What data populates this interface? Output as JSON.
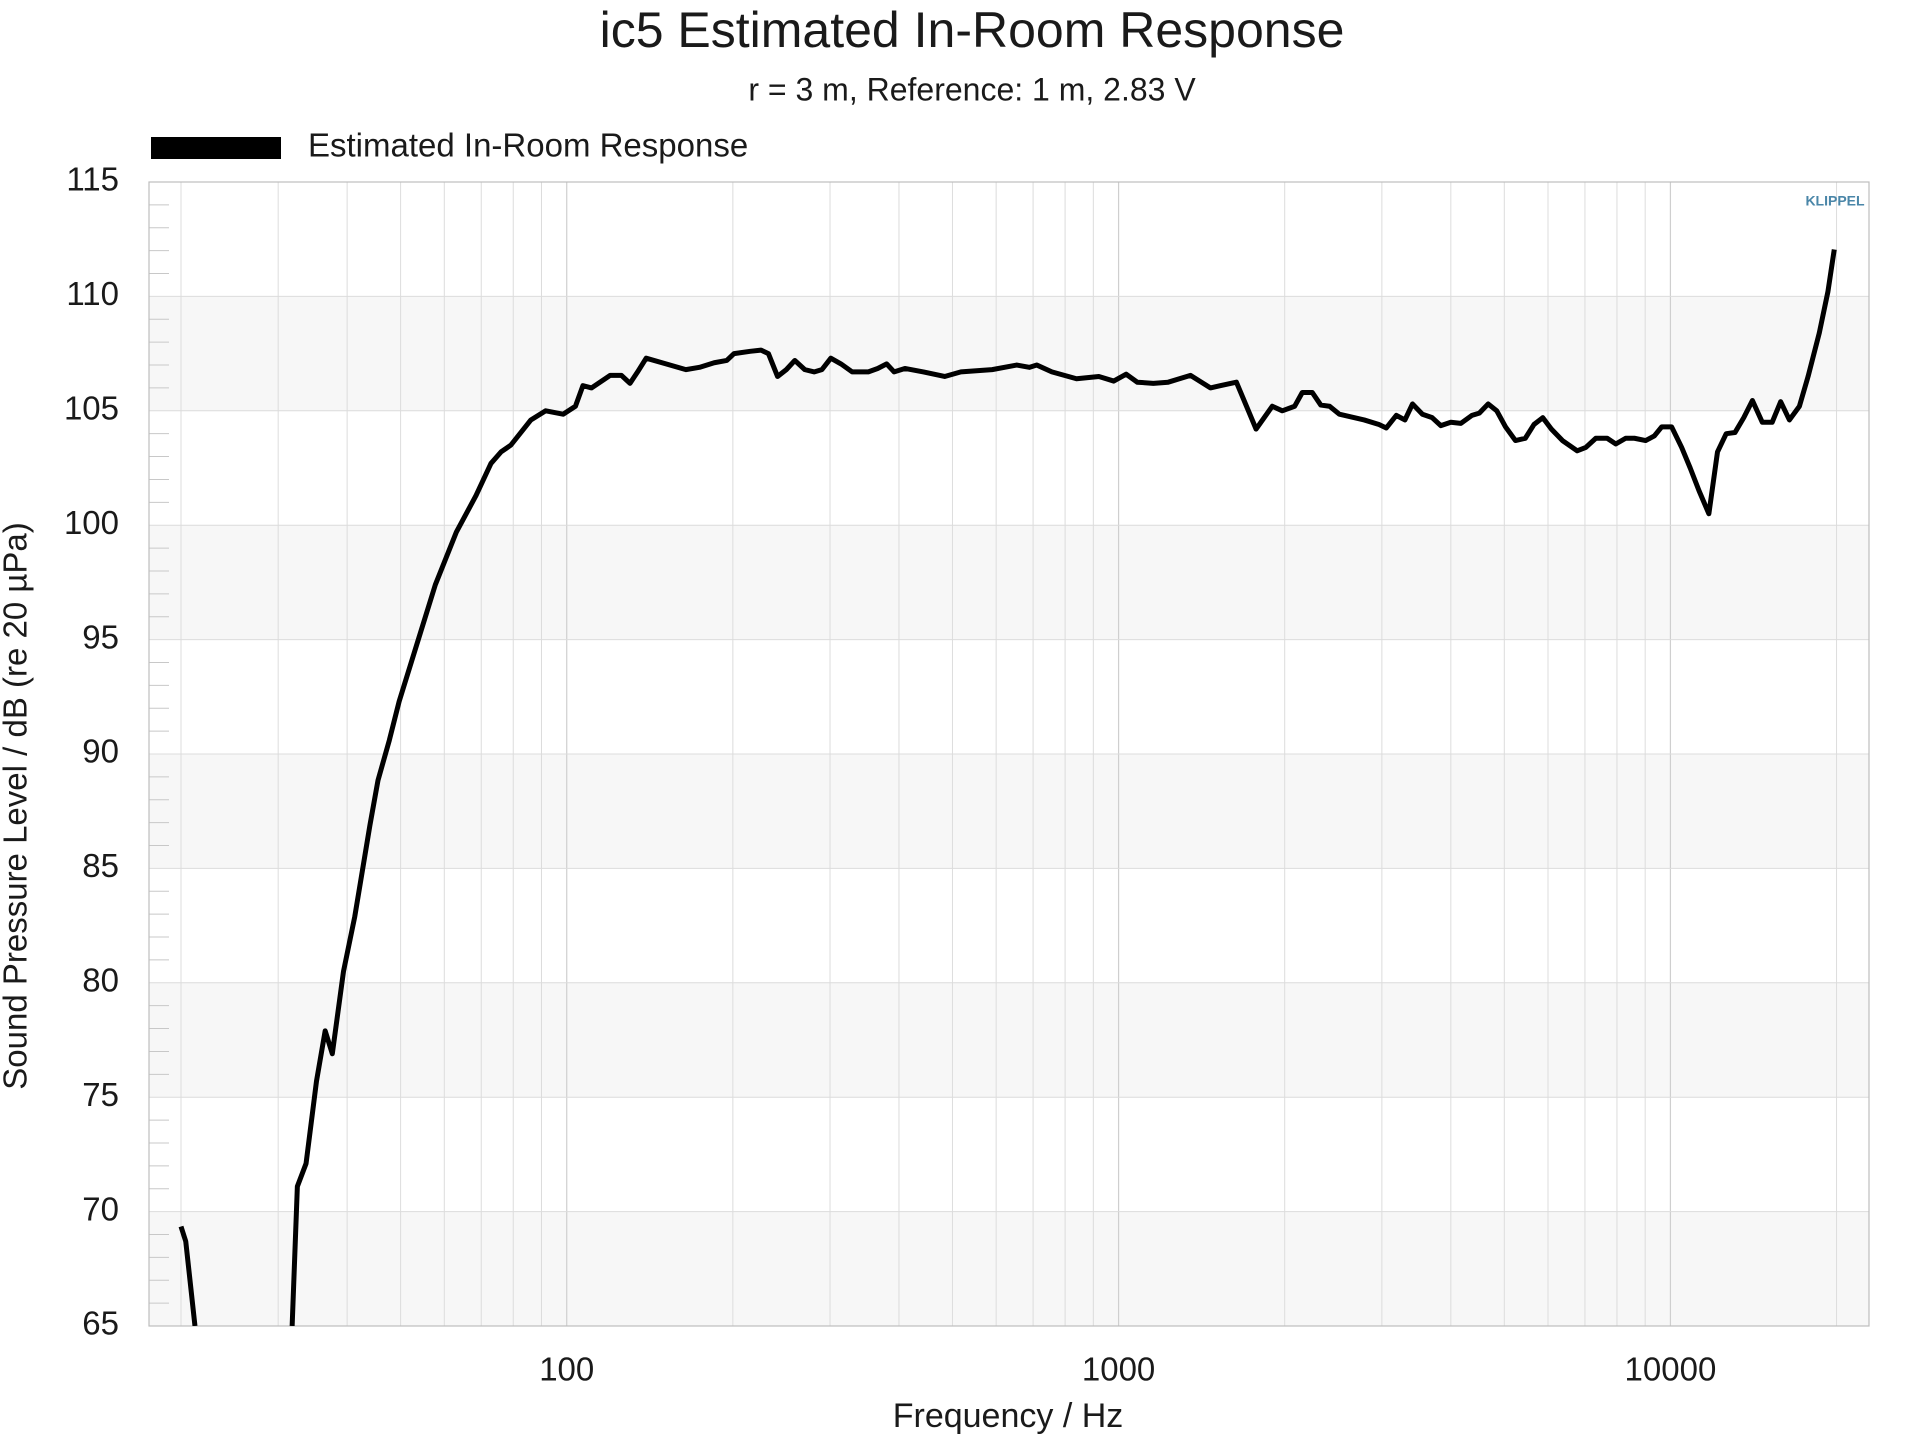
{
  "chart_data": {
    "type": "line",
    "title": "ic5 Estimated In-Room Response",
    "subtitle": "r = 3 m,  Reference: 1 m, 2.83 V",
    "xlabel": "Frequency / Hz",
    "ylabel": "Sound Pressure Level / dB (re 20 µPa)",
    "watermark": "KLIPPEL",
    "xscale": "log",
    "xlim": [
      17.5,
      22900
    ],
    "ylim": [
      65,
      115
    ],
    "xticks": [
      100,
      1000,
      10000
    ],
    "xminorticks": [
      20,
      30,
      40,
      50,
      60,
      70,
      80,
      90,
      200,
      300,
      400,
      500,
      600,
      700,
      800,
      900,
      2000,
      3000,
      4000,
      5000,
      6000,
      7000,
      8000,
      9000,
      20000
    ],
    "yticks": [
      65,
      70,
      75,
      80,
      85,
      90,
      95,
      100,
      105,
      110,
      115
    ],
    "yminorticks": [
      66,
      67,
      68,
      69,
      71,
      72,
      73,
      74,
      76,
      77,
      78,
      79,
      81,
      82,
      83,
      84,
      86,
      87,
      88,
      89,
      91,
      92,
      93,
      94,
      96,
      97,
      98,
      99,
      101,
      102,
      103,
      104,
      106,
      107,
      108,
      109,
      111,
      112,
      113,
      114
    ],
    "grid": true,
    "legend": "top-left",
    "x": [
      20,
      20.4,
      21.2,
      25,
      31.8,
      32.5,
      33.7,
      35.2,
      36.5,
      37.6,
      39.4,
      41.3,
      44,
      45.5,
      47.7,
      49.7,
      53.2,
      57.8,
      63.1,
      68.5,
      72.9,
      76,
      79.2,
      86.1,
      91.6,
      98.5,
      103.7,
      107,
      110.9,
      119.9,
      125.6,
      130.2,
      134.4,
      139.3,
      151.3,
      164.4,
      174,
      185,
      195,
      201,
      215,
      225,
      232,
      241,
      250,
      259,
      270,
      281,
      290,
      301,
      314,
      329,
      352,
      366,
      380,
      392,
      410,
      443,
      484,
      518,
      590,
      654,
      689,
      711,
      757,
      839,
      921,
      980,
      1032,
      1081,
      1156,
      1230,
      1350,
      1467,
      1528,
      1635,
      1775,
      1899,
      1980,
      2085,
      2152,
      2244,
      2325,
      2411,
      2512,
      2786,
      2964,
      3056,
      3186,
      3303,
      3409,
      3553,
      3701,
      3837,
      4000,
      4171,
      4368,
      4505,
      4674,
      4845,
      5025,
      5238,
      5458,
      5658,
      5870,
      6086,
      6372,
      6777,
      7025,
      7325,
      7680,
      7960,
      8297,
      8604,
      9018,
      9350,
      9644,
      10050,
      10480,
      10860,
      11270,
      11740,
      12170,
      12620,
      13090,
      13580,
      14080,
      14670,
      15290,
      15840,
      16430,
      17130,
      17760,
      18610,
      19290,
      19810
    ],
    "series": [
      {
        "name": "Estimated In-Room Response",
        "color": "#000000",
        "values": [
          69.35,
          68.7,
          65,
          null,
          65,
          71.1,
          72.1,
          75.7,
          77.9,
          76.9,
          80.5,
          82.9,
          86.9,
          88.85,
          90.6,
          92.3,
          94.6,
          97.4,
          99.7,
          101.3,
          102.7,
          103.2,
          103.5,
          104.6,
          105,
          104.85,
          105.2,
          106.1,
          106,
          106.55,
          106.55,
          106.2,
          106.7,
          107.3,
          107.05,
          106.8,
          106.9,
          107.1,
          107.2,
          107.5,
          107.6,
          107.65,
          107.5,
          106.5,
          106.8,
          107.2,
          106.8,
          106.7,
          106.8,
          107.3,
          107.05,
          106.7,
          106.7,
          106.85,
          107.05,
          106.7,
          106.85,
          106.7,
          106.5,
          106.7,
          106.8,
          107,
          106.9,
          107,
          106.7,
          106.4,
          106.5,
          106.3,
          106.6,
          106.25,
          106.2,
          106.25,
          106.55,
          106,
          106.1,
          106.25,
          104.2,
          105.2,
          105,
          105.2,
          105.8,
          105.8,
          105.25,
          105.2,
          104.85,
          104.6,
          104.4,
          104.25,
          104.8,
          104.6,
          105.3,
          104.85,
          104.7,
          104.35,
          104.5,
          104.45,
          104.8,
          104.9,
          105.3,
          105,
          104.3,
          103.7,
          103.8,
          104.4,
          104.7,
          104.2,
          103.7,
          103.25,
          103.4,
          103.8,
          103.8,
          103.55,
          103.8,
          103.8,
          103.7,
          103.9,
          104.3,
          104.3,
          103.4,
          102.5,
          101.5,
          100.5,
          103.2,
          104,
          104.05,
          104.7,
          105.45,
          104.5,
          104.5,
          105.4,
          104.6,
          105.2,
          106.5,
          108.4,
          110.2,
          112.05
        ]
      }
    ]
  }
}
